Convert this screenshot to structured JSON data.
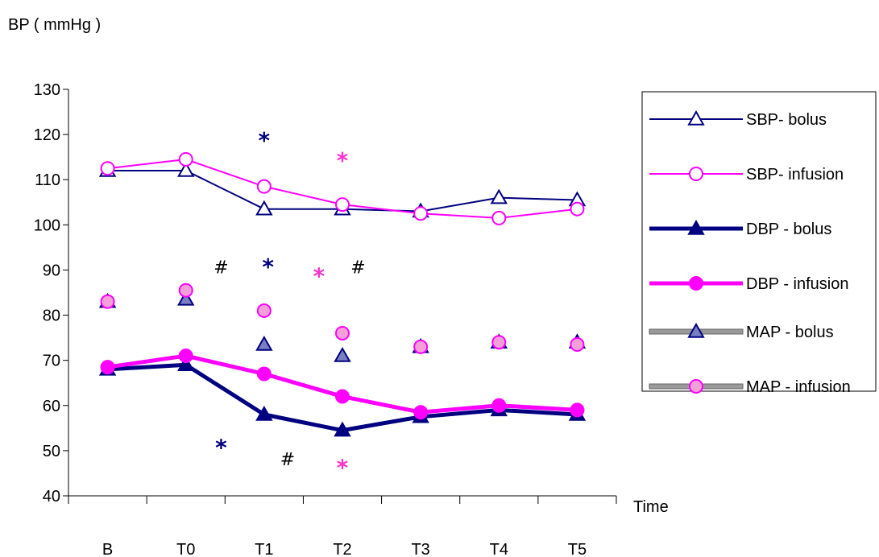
{
  "chart_data": {
    "type": "line",
    "title": "",
    "ylabel": "BP ( mmHg )",
    "xlabel": "Time",
    "ylim": [
      40,
      130
    ],
    "yticks": [
      40,
      50,
      60,
      70,
      80,
      90,
      100,
      110,
      120,
      130
    ],
    "categories": [
      "B",
      "T0",
      "T1",
      "T2",
      "T3",
      "T4",
      "T5"
    ],
    "grid": false,
    "legend_position": "right",
    "series": [
      {
        "name": "SBP- bolus",
        "values": [
          112,
          112,
          103.5,
          103.5,
          103,
          106,
          105.5
        ],
        "color": "#000080",
        "marker": "triangle",
        "marker_filled": false,
        "line": "thin"
      },
      {
        "name": "SBP- infusion",
        "values": [
          112.5,
          114.5,
          108.5,
          104.5,
          102.5,
          101.5,
          103.5
        ],
        "color": "#ff00ff",
        "marker": "circle",
        "marker_filled": false,
        "line": "thin"
      },
      {
        "name": "DBP - bolus",
        "values": [
          68,
          69,
          58,
          54.5,
          57.5,
          59,
          58
        ],
        "color": "#000080",
        "marker": "triangle",
        "marker_filled": true,
        "line": "thick"
      },
      {
        "name": "DBP - infusion",
        "values": [
          68.5,
          71,
          67,
          62,
          58.5,
          60,
          59
        ],
        "color": "#ff00ff",
        "marker": "circle",
        "marker_filled": true,
        "line": "thick"
      },
      {
        "name": "MAP - bolus",
        "values": [
          83,
          83.5,
          73.5,
          71,
          73,
          74,
          74
        ],
        "color": "#000080",
        "marker": "triangle",
        "marker_fill": "#7a7fc0",
        "line": "none"
      },
      {
        "name": "MAP - infusion",
        "values": [
          83,
          85.5,
          81,
          76,
          73,
          74,
          73.5
        ],
        "color": "#ff00ff",
        "marker": "circle",
        "marker_fill": "#f4a0d8",
        "line": "none"
      }
    ],
    "annotations": [
      {
        "text": "*",
        "x": 2.0,
        "y": 119.5,
        "color": "#000080"
      },
      {
        "text": "*",
        "x": 3.0,
        "y": 115,
        "color": "#ff33cc"
      },
      {
        "text": "#",
        "x": 1.45,
        "y": 90.5,
        "color": "#000000"
      },
      {
        "text": "*",
        "x": 2.05,
        "y": 91.5,
        "color": "#000080"
      },
      {
        "text": "*",
        "x": 2.7,
        "y": 89.5,
        "color": "#ff33cc"
      },
      {
        "text": "#",
        "x": 3.2,
        "y": 90.5,
        "color": "#000000"
      },
      {
        "text": "*",
        "x": 1.45,
        "y": 51.5,
        "color": "#000080"
      },
      {
        "text": "#",
        "x": 2.3,
        "y": 48,
        "color": "#000000"
      },
      {
        "text": "*",
        "x": 3.0,
        "y": 47,
        "color": "#ff33cc"
      }
    ]
  }
}
